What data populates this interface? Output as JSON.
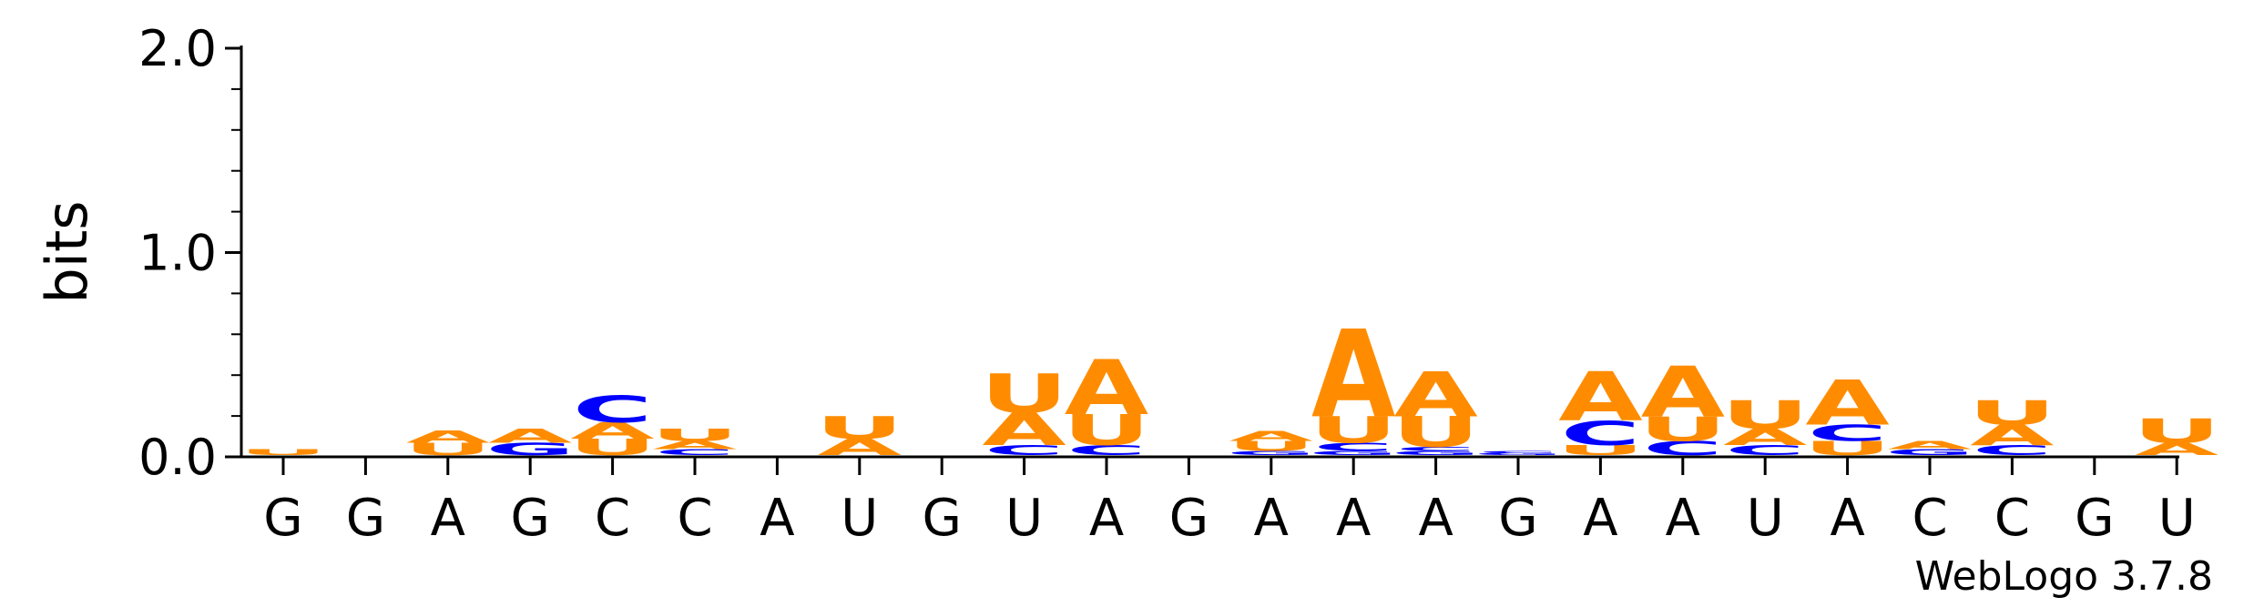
{
  "chart_data": {
    "type": "sequence-logo",
    "ylabel": "bits",
    "ylim": [
      0,
      2.0
    ],
    "yticks": [
      "0.0",
      "1.0",
      "2.0"
    ],
    "positions": [
      "G",
      "G",
      "A",
      "G",
      "C",
      "C",
      "A",
      "U",
      "G",
      "U",
      "A",
      "G",
      "A",
      "A",
      "A",
      "G",
      "A",
      "A",
      "U",
      "A",
      "C",
      "C",
      "G",
      "U"
    ],
    "colors": {
      "A": "#FF8C00",
      "U": "#FF8C00",
      "C": "#0000FF",
      "G": "#0000FF"
    },
    "stacks": [
      [
        [
          "U",
          0.03
        ]
      ],
      [],
      [
        [
          "U",
          0.06
        ],
        [
          "A",
          0.06
        ]
      ],
      [
        [
          "G",
          0.06
        ],
        [
          "A",
          0.07
        ]
      ],
      [
        [
          "U",
          0.08
        ],
        [
          "A",
          0.08
        ],
        [
          "C",
          0.13
        ]
      ],
      [
        [
          "C",
          0.03
        ],
        [
          "A",
          0.04
        ],
        [
          "U",
          0.06
        ]
      ],
      [],
      [
        [
          "A",
          0.08
        ],
        [
          "U",
          0.11
        ]
      ],
      [],
      [
        [
          "C",
          0.05
        ],
        [
          "A",
          0.16
        ],
        [
          "U",
          0.19
        ]
      ],
      [
        [
          "C",
          0.05
        ],
        [
          "U",
          0.15
        ],
        [
          "A",
          0.27
        ]
      ],
      [],
      [
        [
          "G",
          0.02
        ],
        [
          "U",
          0.05
        ],
        [
          "A",
          0.05
        ]
      ],
      [
        [
          "G",
          0.02
        ],
        [
          "C",
          0.04
        ],
        [
          "U",
          0.13
        ],
        [
          "A",
          0.43
        ]
      ],
      [
        [
          "G",
          0.02
        ],
        [
          "C",
          0.02
        ],
        [
          "U",
          0.15
        ],
        [
          "A",
          0.22
        ]
      ],
      [
        [
          "G",
          0.01
        ],
        [
          "C",
          0.01
        ]
      ],
      [
        [
          "U",
          0.05
        ],
        [
          "C",
          0.12
        ],
        [
          "A",
          0.24
        ]
      ],
      [
        [
          "C",
          0.07
        ],
        [
          "U",
          0.12
        ],
        [
          "A",
          0.25
        ]
      ],
      [
        [
          "C",
          0.05
        ],
        [
          "A",
          0.08
        ],
        [
          "U",
          0.14
        ]
      ],
      [
        [
          "U",
          0.07
        ],
        [
          "C",
          0.08
        ],
        [
          "A",
          0.22
        ]
      ],
      [
        [
          "G",
          0.03
        ],
        [
          "A",
          0.04
        ]
      ],
      [
        [
          "C",
          0.05
        ],
        [
          "A",
          0.1
        ],
        [
          "U",
          0.12
        ]
      ],
      [],
      [
        [
          "A",
          0.06
        ],
        [
          "U",
          0.12
        ]
      ]
    ]
  },
  "footer": {
    "credit": "WebLogo 3.7.8"
  }
}
